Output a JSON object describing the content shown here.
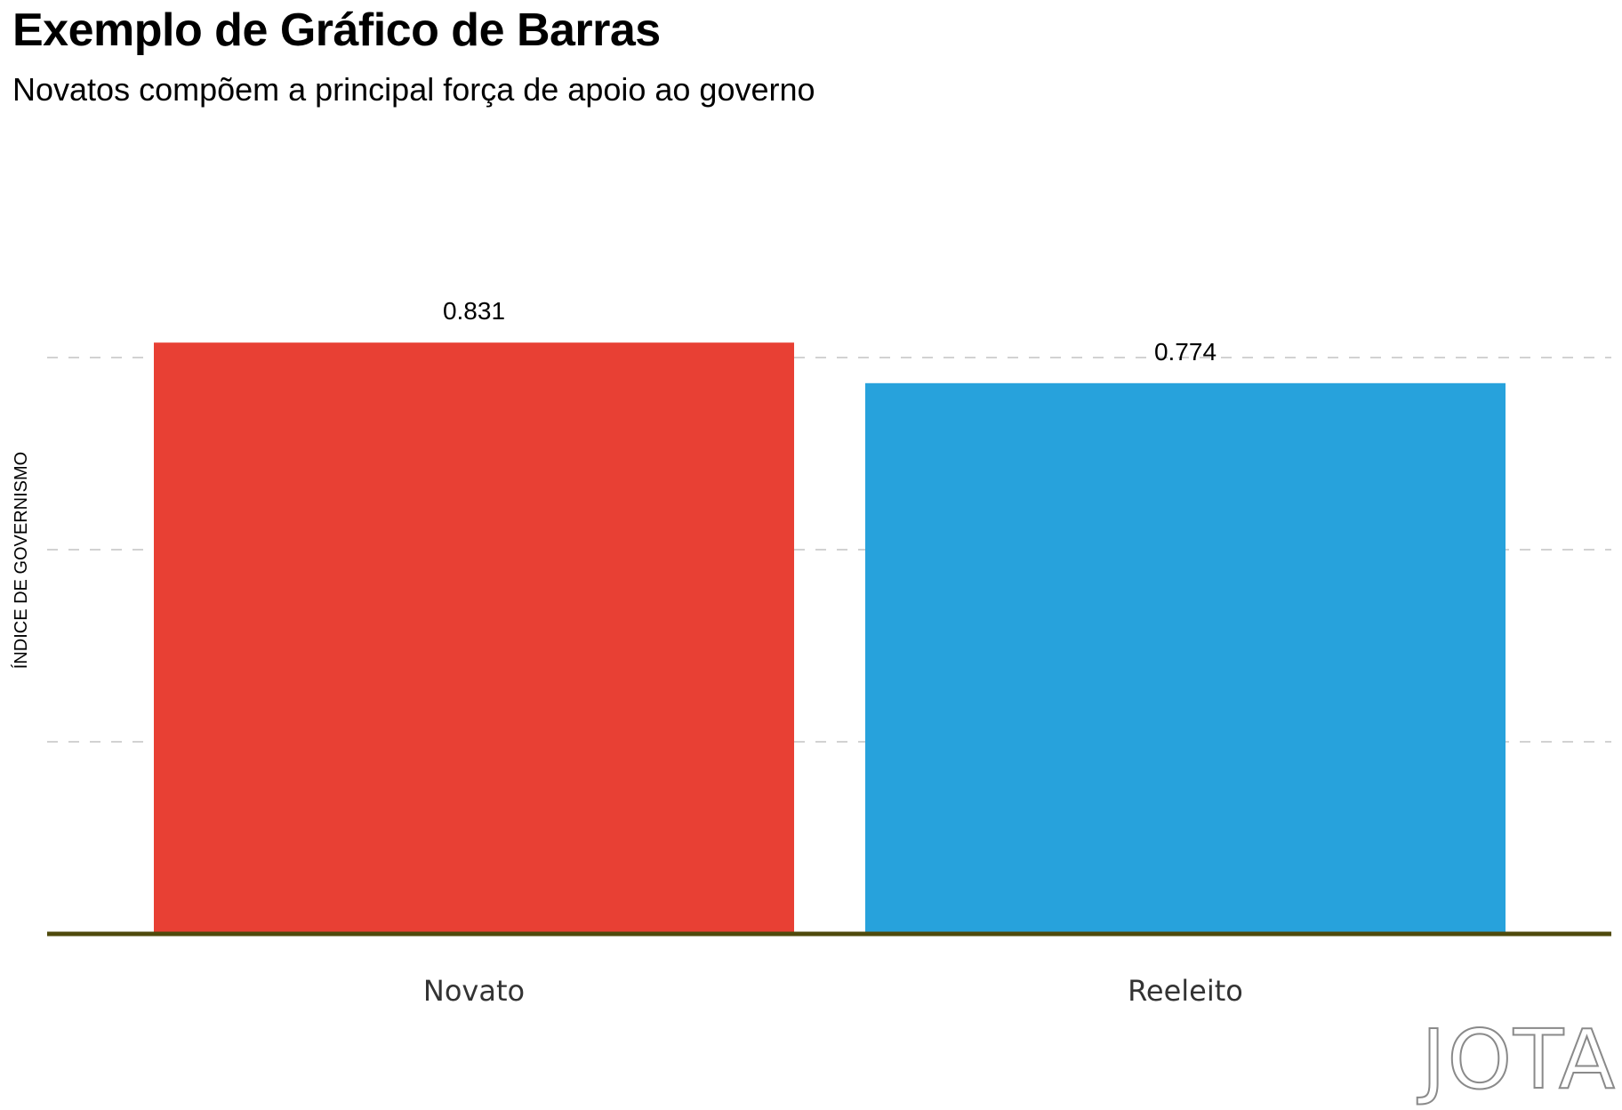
{
  "chart_data": {
    "type": "bar",
    "title": "Exemplo de Gráfico de Barras",
    "subtitle": "Novatos compõem a principal força de apoio ao governo",
    "xlabel": "",
    "ylabel": "ÍNDICE DE GOVERNISMO",
    "categories": [
      "Novato",
      "Reeleito"
    ],
    "values": [
      0.831,
      0.774
    ],
    "data_labels": [
      "0.831",
      "0.774"
    ],
    "colors": [
      "#e84034",
      "#27a2dc"
    ],
    "ylim": [
      0,
      0.9
    ],
    "gridlines": [
      0.27,
      0.54,
      0.81
    ],
    "grid": true,
    "legend": "none"
  },
  "brand": {
    "logo_text": "JOTA"
  }
}
